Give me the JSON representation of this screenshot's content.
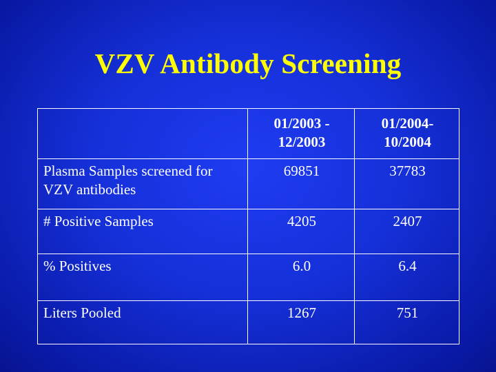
{
  "slide": {
    "title": "VZV Antibody Screening"
  },
  "table": {
    "headers": [
      "",
      "01/2003 - 12/2003",
      "01/2004-10/2004"
    ],
    "rows": [
      {
        "label": "Plasma Samples screened for VZV antibodies",
        "period_2003": "69851",
        "period_2004": "37783"
      },
      {
        "label": "# Positive Samples",
        "period_2003": "4205",
        "period_2004": "2407"
      },
      {
        "label": "% Positives",
        "period_2003": "6.0",
        "period_2004": "6.4"
      },
      {
        "label": "Liters Pooled",
        "period_2003": "1267",
        "period_2004": "751"
      }
    ]
  }
}
